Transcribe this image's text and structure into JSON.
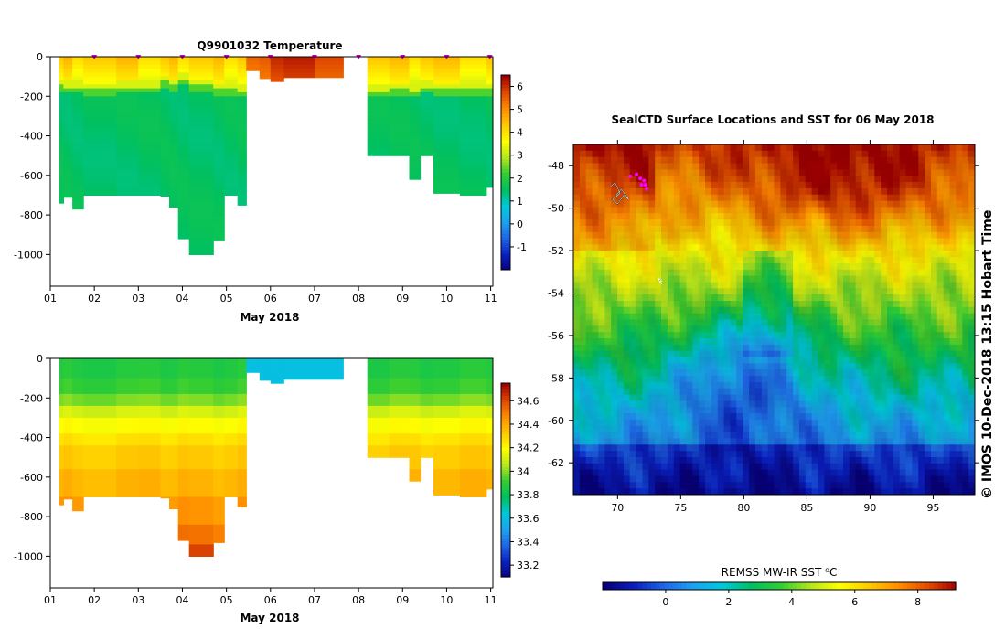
{
  "credit": "© IMOS 10-Dec-2018 13:15 Hobart Time",
  "colors": {
    "ramp": [
      "#08007a",
      "#0a1fbf",
      "#1e64e6",
      "#1ea0f0",
      "#00c8dc",
      "#00c060",
      "#32cd32",
      "#b4e61e",
      "#ffff00",
      "#ffc800",
      "#ff8c00",
      "#e04a00",
      "#a00000"
    ]
  },
  "chart_data": [
    {
      "id": "temperature_section",
      "type": "heatmap",
      "title": "Q9901032  Temperature",
      "xlabel": "May 2018",
      "ylabel": "",
      "x_ticks": [
        "01",
        "02",
        "03",
        "04",
        "05",
        "06",
        "07",
        "08",
        "09",
        "10",
        "11"
      ],
      "y_ticks": [
        0,
        -200,
        -400,
        -600,
        -800,
        -1000
      ],
      "xlim": [
        1.0,
        11.05
      ],
      "ylim": [
        -1160,
        0
      ],
      "profile_markers_day": [
        2,
        3,
        4,
        5,
        6,
        7,
        8,
        9,
        10,
        11
      ],
      "profiles": [
        {
          "t0": 1.2,
          "t1": 1.3,
          "bottom": -740,
          "therm": -140
        },
        {
          "t0": 1.3,
          "t1": 1.5,
          "bottom": -710,
          "therm": -150
        },
        {
          "t0": 1.5,
          "t1": 1.75,
          "bottom": -770,
          "therm": -150
        },
        {
          "t0": 1.75,
          "t1": 2.5,
          "bottom": -700,
          "therm": -160
        },
        {
          "t0": 2.5,
          "t1": 3.0,
          "bottom": -700,
          "therm": -150
        },
        {
          "t0": 3.0,
          "t1": 3.5,
          "bottom": -700,
          "therm": -150
        },
        {
          "t0": 3.5,
          "t1": 3.7,
          "bottom": -705,
          "therm": -120
        },
        {
          "t0": 3.7,
          "t1": 3.9,
          "bottom": -760,
          "therm": -140
        },
        {
          "t0": 3.9,
          "t1": 4.15,
          "bottom": -920,
          "therm": -110
        },
        {
          "t0": 4.15,
          "t1": 4.7,
          "bottom": -1000,
          "therm": -140
        },
        {
          "t0": 4.7,
          "t1": 4.95,
          "bottom": -930,
          "therm": -160
        },
        {
          "t0": 4.95,
          "t1": 5.25,
          "bottom": -700,
          "therm": -160
        },
        {
          "t0": 5.25,
          "t1": 5.45,
          "bottom": -750,
          "therm": -170
        },
        {
          "t0": 5.45,
          "t1": 5.75,
          "bottom": -70,
          "therm": -9999
        },
        {
          "t0": 5.75,
          "t1": 6.0,
          "bottom": -110,
          "therm": -9999
        },
        {
          "t0": 6.0,
          "t1": 6.3,
          "bottom": -125,
          "therm": -9999
        },
        {
          "t0": 6.3,
          "t1": 7.0,
          "bottom": -105,
          "therm": -9999
        },
        {
          "t0": 7.0,
          "t1": 7.65,
          "bottom": -105,
          "therm": -9999
        },
        {
          "t0": 8.2,
          "t1": 8.7,
          "bottom": -500,
          "therm": -170
        },
        {
          "t0": 8.7,
          "t1": 9.15,
          "bottom": -500,
          "therm": -160
        },
        {
          "t0": 9.15,
          "t1": 9.4,
          "bottom": -620,
          "therm": -170
        },
        {
          "t0": 9.4,
          "t1": 9.7,
          "bottom": -500,
          "therm": -150
        },
        {
          "t0": 9.7,
          "t1": 10.3,
          "bottom": -690,
          "therm": -160
        },
        {
          "t0": 10.3,
          "t1": 10.9,
          "bottom": -700,
          "therm": -160
        },
        {
          "t0": 10.9,
          "t1": 11.05,
          "bottom": -660,
          "therm": -160
        }
      ],
      "colorbar": {
        "min": -2.0,
        "max": 6.5,
        "ticks": [
          -1,
          0,
          1,
          2,
          3,
          4,
          5,
          6
        ]
      }
    },
    {
      "id": "salinity_section",
      "type": "heatmap",
      "title": "",
      "xlabel": "May 2018",
      "ylabel": "",
      "x_ticks": [
        "01",
        "02",
        "03",
        "04",
        "05",
        "06",
        "07",
        "08",
        "09",
        "10",
        "11"
      ],
      "y_ticks": [
        0,
        -200,
        -400,
        -600,
        -800,
        -1000
      ],
      "xlim": [
        1.0,
        11.05
      ],
      "ylim": [
        -1160,
        0
      ],
      "colorbar": {
        "min": 33.1,
        "max": 34.75,
        "ticks": [
          33.2,
          33.4,
          33.6,
          33.8,
          34,
          34.2,
          34.4,
          34.6
        ]
      }
    },
    {
      "id": "sst_map",
      "type": "heatmap",
      "title": "SealCTD Surface Locations and SST for 06 May 2018",
      "xlabel": "",
      "ylabel": "",
      "x_ticks": [
        70,
        75,
        80,
        85,
        90,
        95
      ],
      "y_ticks": [
        -48,
        -50,
        -52,
        -54,
        -56,
        -58,
        -60,
        -62
      ],
      "xlim": [
        66.5,
        98.3
      ],
      "ylim": [
        -63.5,
        -47.0
      ],
      "colorbar": {
        "label": "REMSS MW-IR SST ⁰C",
        "min": -2.0,
        "max": 9.2,
        "ticks": [
          0,
          2,
          4,
          6,
          8
        ]
      }
    }
  ]
}
